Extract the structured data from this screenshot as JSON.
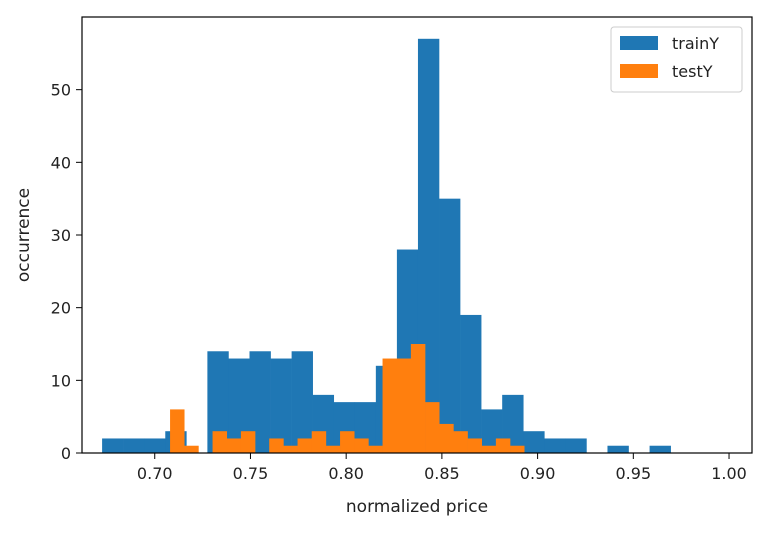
{
  "chart_data": {
    "type": "bar",
    "title": "",
    "xlabel": "normalized price",
    "ylabel": "occurrence",
    "xlim": [
      0.662,
      1.012
    ],
    "ylim": [
      0,
      60
    ],
    "xticks": [
      0.7,
      0.75,
      0.8,
      0.85,
      0.9,
      0.95,
      1.0
    ],
    "xtick_labels": [
      "0.70",
      "0.75",
      "0.80",
      "0.85",
      "0.90",
      "0.95",
      "1.00"
    ],
    "yticks": [
      0,
      10,
      20,
      30,
      40,
      50
    ],
    "ytick_labels": [
      "0",
      "10",
      "20",
      "30",
      "40",
      "50"
    ],
    "grid": false,
    "legend_position": "top-right",
    "series": [
      {
        "name": "trainY",
        "color": "#1f77b4",
        "bin_start": 0.6725,
        "bin_width": 0.011,
        "values": [
          2,
          2,
          2,
          3,
          0,
          14,
          13,
          14,
          13,
          14,
          8,
          7,
          7,
          12,
          28,
          57,
          35,
          19,
          6,
          8,
          3,
          2,
          2,
          0,
          1,
          0,
          1
        ]
      },
      {
        "name": "testY",
        "color": "#ff7f0e",
        "bin_start": 0.708,
        "bin_width": 0.0074,
        "values": [
          6,
          1,
          0,
          3,
          2,
          3,
          0,
          2,
          1,
          2,
          3,
          1,
          3,
          2,
          1,
          13,
          13,
          15,
          7,
          4,
          3,
          2,
          1,
          2,
          1
        ]
      }
    ]
  }
}
